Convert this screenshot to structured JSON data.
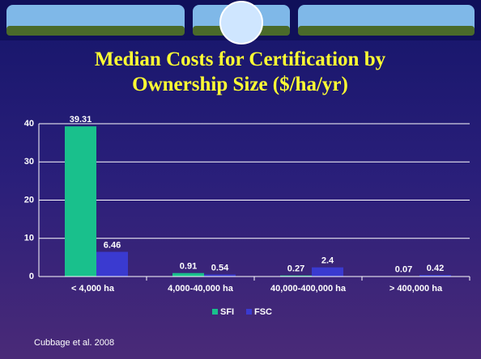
{
  "chart_data": {
    "type": "bar",
    "title": "Median Costs for Certification by Ownership Size ($/ha/yr)",
    "categories": [
      "< 4,000 ha",
      "4,000-40,000 ha",
      "40,000-400,000 ha",
      "> 400,000 ha"
    ],
    "series": [
      {
        "name": "SFI",
        "color": "#19c08c",
        "values": [
          39.31,
          0.91,
          0.27,
          0.07
        ]
      },
      {
        "name": "FSC",
        "color": "#3a3ad0",
        "values": [
          6.46,
          0.54,
          2.4,
          0.42
        ]
      }
    ],
    "ylim": [
      0,
      40
    ],
    "yticks": [
      0,
      10,
      20,
      30,
      40
    ],
    "grid": true,
    "legend": "bottom",
    "source": "Cubbage et al. 2008"
  }
}
